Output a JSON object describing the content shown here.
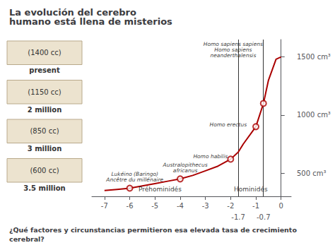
{
  "chart_data": {
    "type": "line",
    "title": "La evolución del cerebro\nhumano está llena de misterios",
    "caption": "¿Qué factores y circunstancias permitieron esa elevada tasa de crecimiento\ncerebral?",
    "x": [
      -7,
      -6.5,
      -6,
      -5.5,
      -5,
      -4.5,
      -4,
      -3.5,
      -3,
      -2.5,
      -2,
      -1.7,
      -1.5,
      -1,
      -0.7,
      -0.5,
      -0.2,
      0
    ],
    "values": [
      350,
      360,
      370,
      390,
      410,
      430,
      450,
      480,
      520,
      560,
      620,
      680,
      750,
      900,
      1100,
      1300,
      1480,
      1500
    ],
    "color": "#aa0000",
    "xlim": [
      -7.5,
      0.4
    ],
    "xticks": [
      -7,
      -6,
      -5,
      -4,
      -3,
      -2,
      -1,
      0,
      -1.7,
      -0.7
    ],
    "ylim": [
      300,
      1650
    ],
    "yticks": [
      {
        "value": 500,
        "label": "500 cm³"
      },
      {
        "value": 1000,
        "label": "1000 cm³"
      },
      {
        "value": 1500,
        "label": "1500 cm³"
      }
    ],
    "grid": false,
    "key_points": [
      {
        "x": -6.0,
        "y": 370,
        "label": "Lukéino (Baringo)\nAncêtre du millénaire",
        "label_x": -5.8,
        "label_y": 400
      },
      {
        "x": -4.0,
        "y": 450,
        "label": "Australopithecus\nafricanus",
        "label_x": -3.8,
        "label_y": 480
      },
      {
        "x": -2.0,
        "y": 620,
        "label": "Homo habilis",
        "label_x": -2.8,
        "label_y": 600
      },
      {
        "x": -1.0,
        "y": 900,
        "label": "Homo erectus",
        "label_x": -2.1,
        "label_y": 875
      },
      {
        "x": -0.7,
        "y": 1100,
        "label": "Homo sapiens sapiens\nHomo sapiens\nneanderthalensis",
        "label_x": -1.9,
        "label_y": 1470
      }
    ],
    "reference_lines_x": [
      -1.7,
      -0.7
    ],
    "annotations": [
      {
        "x": -4.8,
        "y": 315,
        "text": "Préhominidés"
      },
      {
        "x": -1.2,
        "y": 315,
        "text": "Hominidés"
      }
    ],
    "skulls": [
      {
        "cc": "(600 cc)",
        "age": "3.5 million"
      },
      {
        "cc": "(850 cc)",
        "age": "3 million"
      },
      {
        "cc": "(1150 cc)",
        "age": "2 million"
      },
      {
        "cc": "(1400 cc)",
        "age": "present"
      }
    ]
  }
}
